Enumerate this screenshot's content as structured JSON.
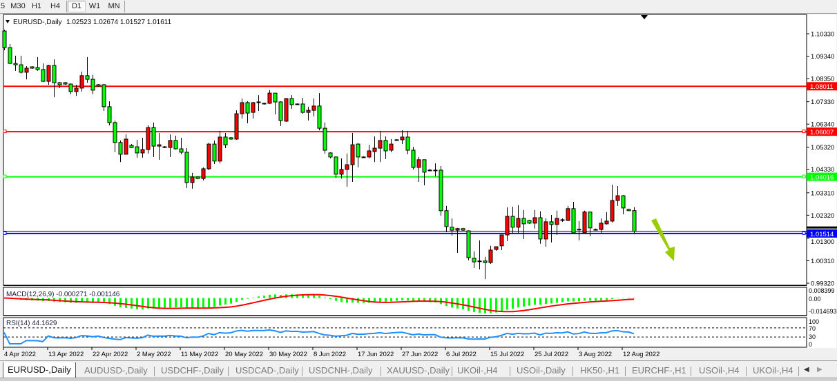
{
  "toolbar": {
    "timeframes": [
      {
        "label": "5",
        "active": false
      },
      {
        "label": "M30",
        "active": false
      },
      {
        "label": "H1",
        "active": false
      },
      {
        "label": "H4",
        "active": false
      },
      {
        "label": "D1",
        "active": true
      },
      {
        "label": "W1",
        "active": false
      },
      {
        "label": "MN",
        "active": false
      }
    ]
  },
  "chart": {
    "header_symbol": "EURUSD-,Daily",
    "header_ohlc": "1.02523 1.02674 1.01527 1.01611",
    "colors": {
      "up_candle": "#ff0000",
      "down_candle": "#00ff00",
      "wick": "#000000",
      "macd_hist": "#00ff00",
      "macd_signal": "#ff0000",
      "rsi": "#1e90ff",
      "arrow": "#9acd00"
    },
    "price_ticks": [
      "1.10330",
      "1.09340",
      "1.08350",
      "1.07330",
      "1.06340",
      "1.05320",
      "1.04330",
      "1.03310",
      "1.02320",
      "1.01300",
      "1.00310",
      "0.99320"
    ],
    "levels": [
      {
        "price": "1.08011",
        "color": "#ff0000",
        "text_color": "#ffffff"
      },
      {
        "price": "1.06007",
        "color": "#ff0000",
        "text_color": "#ffffff"
      },
      {
        "price": "1.04016",
        "color": "#00ff00",
        "text_color": "#ffffff"
      },
      {
        "price": "1.01514",
        "color": "#0000ff",
        "text_color": "#ffffff"
      }
    ],
    "bid": "1.01611",
    "date_labels": [
      "4 Apr 2022",
      "13 Apr 2022",
      "22 Apr 2022",
      "2 May 2022",
      "11 May 2022",
      "20 May 2022",
      "30 May 2022",
      "8 Jun 2022",
      "17 Jun 2022",
      "27 Jun 2022",
      "6 Jul 2022",
      "15 Jul 2022",
      "25 Jul 2022",
      "3 Aug 2022",
      "12 Aug 2022"
    ],
    "annotation": {
      "type": "arrow",
      "direction": "down-right",
      "icon": "arrow-down-right-icon"
    }
  },
  "macd": {
    "label": "MACD(12,26,9) -0.000271 -0.001146",
    "params": [
      12,
      26,
      9
    ],
    "main": -0.000271,
    "signal": -0.001146,
    "scale_max": "0.008399",
    "scale_zero": "0.00",
    "scale_min": "-0.014693"
  },
  "rsi": {
    "label": "RSI(14) 44.1629",
    "period": 14,
    "value": 44.1629,
    "levels": [
      "100",
      "70",
      "30",
      "0"
    ]
  },
  "chart_data": {
    "type": "candlestick",
    "symbol": "EURUSD-",
    "timeframe": "Daily",
    "ylim": [
      0.9932,
      1.1033
    ],
    "candles_ohlc": [
      [
        1.1045,
        1.1051,
        1.096,
        1.0972
      ],
      [
        1.0972,
        1.0987,
        1.0899,
        1.0902
      ],
      [
        1.0902,
        1.0936,
        1.0869,
        1.0896
      ],
      [
        1.0896,
        1.0936,
        1.0857,
        1.0863
      ],
      [
        1.0863,
        1.089,
        1.0832,
        1.0881
      ],
      [
        1.0887,
        1.089,
        1.0878,
        1.0881
      ],
      [
        1.0884,
        1.093,
        1.0869,
        1.0875
      ],
      [
        1.0875,
        1.0902,
        1.082,
        1.0823
      ],
      [
        1.0823,
        1.0896,
        1.0808,
        1.0893
      ],
      [
        1.0893,
        1.092,
        1.0753,
        1.0817
      ],
      [
        1.0817,
        1.082,
        1.0793,
        1.0808
      ],
      [
        1.0817,
        1.082,
        1.0808,
        1.0811
      ],
      [
        1.0811,
        1.0814,
        1.0766,
        1.0778
      ],
      [
        1.0778,
        1.0808,
        1.0759,
        1.0793
      ],
      [
        1.0793,
        1.0866,
        1.0778,
        1.0848
      ],
      [
        1.0848,
        1.093,
        1.0817,
        1.0832
      ],
      [
        1.0832,
        1.0851,
        1.0766,
        1.0784
      ],
      [
        1.0808,
        1.0811,
        1.0799,
        1.0802
      ],
      [
        1.0808,
        1.0811,
        1.0692,
        1.0711
      ],
      [
        1.0711,
        1.0735,
        1.0629,
        1.0641
      ],
      [
        1.0641,
        1.065,
        1.051,
        1.0553
      ],
      [
        1.0553,
        1.0562,
        1.0467,
        1.0501
      ],
      [
        1.0501,
        1.0589,
        1.0501,
        1.0568
      ],
      [
        1.054,
        1.0546,
        1.0528,
        1.0531
      ],
      [
        1.0534,
        1.0565,
        1.0486,
        1.0507
      ],
      [
        1.0507,
        1.0574,
        1.0486,
        1.0522
      ],
      [
        1.0522,
        1.0629,
        1.0504,
        1.0619
      ],
      [
        1.0619,
        1.0641,
        1.0489,
        1.0537
      ],
      [
        1.0537,
        1.0595,
        1.0477,
        1.0543
      ],
      [
        1.0534,
        1.0537,
        1.0528,
        1.0534
      ],
      [
        1.0531,
        1.0589,
        1.0489,
        1.0562
      ],
      [
        1.0562,
        1.0583,
        1.0522,
        1.0525
      ],
      [
        1.0525,
        1.0574,
        1.0501,
        1.051
      ],
      [
        1.051,
        1.0528,
        1.0352,
        1.0376
      ],
      [
        1.0376,
        1.0419,
        1.0349,
        1.0401
      ],
      [
        1.0401,
        1.0404,
        1.0391,
        1.0394
      ],
      [
        1.0394,
        1.0443,
        1.0385,
        1.0437
      ],
      [
        1.0437,
        1.0552,
        1.0431,
        1.0546
      ],
      [
        1.0546,
        1.0562,
        1.0458,
        1.0471
      ],
      [
        1.0471,
        1.0604,
        1.0461,
        1.0577
      ],
      [
        1.0577,
        1.0595,
        1.0528,
        1.0543
      ],
      [
        1.0574,
        1.0577,
        1.0565,
        1.0568
      ],
      [
        1.0568,
        1.0695,
        1.0565,
        1.068
      ],
      [
        1.068,
        1.0747,
        1.0659,
        1.0729
      ],
      [
        1.0729,
        1.0735,
        1.0638,
        1.0683
      ],
      [
        1.0686,
        1.0732,
        1.0659,
        1.0729
      ],
      [
        1.0732,
        1.0762,
        1.0692,
        1.0732
      ],
      [
        1.0726,
        1.0729,
        1.072,
        1.0726
      ],
      [
        1.0726,
        1.0784,
        1.0723,
        1.0771
      ],
      [
        1.0771,
        1.0771,
        1.0677,
        1.0732
      ],
      [
        1.0732,
        1.0735,
        1.0626,
        1.065
      ],
      [
        1.0647,
        1.0747,
        1.0644,
        1.0747
      ],
      [
        1.0747,
        1.0762,
        1.0702,
        1.072
      ],
      [
        1.0723,
        1.0726,
        1.072,
        1.0723
      ],
      [
        1.0723,
        1.075,
        1.068,
        1.0686
      ],
      [
        1.0686,
        1.0711,
        1.065,
        1.0695
      ],
      [
        1.0695,
        1.0747,
        1.0668,
        1.0714
      ],
      [
        1.0714,
        1.0771,
        1.0607,
        1.0616
      ],
      [
        1.0616,
        1.0641,
        1.0504,
        1.0519
      ],
      [
        1.0507,
        1.051,
        1.0483,
        1.0489
      ],
      [
        1.0489,
        1.0492,
        1.0397,
        1.0413
      ],
      [
        1.0413,
        1.0483,
        1.0394,
        1.0434
      ],
      [
        1.0434,
        1.0504,
        1.0358,
        1.0455
      ],
      [
        1.0455,
        1.0595,
        1.0379,
        1.0543
      ],
      [
        1.0546,
        1.055,
        1.0443,
        1.0489
      ],
      [
        1.0489,
        1.0492,
        1.0486,
        1.0489
      ],
      [
        1.0489,
        1.0543,
        1.0483,
        1.0516
      ],
      [
        1.0513,
        1.058,
        1.0467,
        1.0528
      ],
      [
        1.0528,
        1.0604,
        1.0467,
        1.0562
      ],
      [
        1.0562,
        1.058,
        1.048,
        1.0516
      ],
      [
        1.0519,
        1.0568,
        1.051,
        1.0546
      ],
      [
        1.0565,
        1.0568,
        1.0562,
        1.0565
      ],
      [
        1.0565,
        1.0607,
        1.0546,
        1.0577
      ],
      [
        1.0577,
        1.0604,
        1.0501,
        1.0519
      ],
      [
        1.0519,
        1.0534,
        1.0434,
        1.0443
      ],
      [
        1.0443,
        1.0489,
        1.0379,
        1.0477
      ],
      [
        1.0477,
        1.0477,
        1.0364,
        1.0422
      ],
      [
        1.0431,
        1.0437,
        1.0428,
        1.0431
      ],
      [
        1.0431,
        1.0461,
        1.0404,
        1.0431
      ],
      [
        1.0431,
        1.0449,
        1.023,
        1.0252
      ],
      [
        1.0252,
        1.0273,
        1.0157,
        1.0182
      ],
      [
        1.0179,
        1.0218,
        1.0142,
        1.0166
      ],
      [
        1.0166,
        1.0176,
        1.0066,
        1.0173
      ],
      [
        1.0173,
        1.0176,
        1.0163,
        1.0166
      ],
      [
        1.0163,
        1.0166,
        1.0033,
        1.0045
      ],
      [
        1.0042,
        1.0072,
        0.9999,
        1.0026
      ],
      [
        1.003,
        1.0121,
        0.9993,
        1.003
      ],
      [
        1.003,
        1.0048,
        0.995,
        1.0023
      ],
      [
        1.0023,
        1.0097,
        1.0017,
        1.0078
      ],
      [
        1.0081,
        1.0093,
        1.0075,
        1.0093
      ],
      [
        1.0097,
        1.0145,
        1.0078,
        1.0145
      ],
      [
        1.0145,
        1.0267,
        1.0118,
        1.0227
      ],
      [
        1.0227,
        1.027,
        1.0154,
        1.0179
      ],
      [
        1.0179,
        1.0276,
        1.0154,
        1.0218
      ],
      [
        1.0218,
        1.0255,
        1.0127,
        1.0194
      ],
      [
        1.0209,
        1.0212,
        1.0194,
        1.0197
      ],
      [
        1.0197,
        1.0255,
        1.0173,
        1.0221
      ],
      [
        1.0221,
        1.0249,
        1.0106,
        1.0127
      ],
      [
        1.0127,
        1.0218,
        1.0093,
        1.0203
      ],
      [
        1.0203,
        1.0233,
        1.0112,
        1.0191
      ],
      [
        1.0191,
        1.0252,
        1.0145,
        1.0218
      ],
      [
        1.0212,
        1.0218,
        1.0203,
        1.0212
      ],
      [
        1.0209,
        1.0273,
        1.0206,
        1.0261
      ],
      [
        1.0261,
        1.0291,
        1.0154,
        1.0154
      ],
      [
        1.017,
        1.0206,
        1.0121,
        1.017
      ],
      [
        1.0154,
        1.0252,
        1.0154,
        1.0246
      ],
      [
        1.0246,
        1.0246,
        1.0139,
        1.0176
      ],
      [
        1.0169,
        1.0173,
        1.0166,
        1.0169
      ],
      [
        1.0169,
        1.0218,
        1.0154,
        1.0197
      ],
      [
        1.0194,
        1.0246,
        1.0191,
        1.0206
      ],
      [
        1.0206,
        1.0367,
        1.02,
        1.0297
      ],
      [
        1.0297,
        1.0361,
        1.0273,
        1.0318
      ],
      [
        1.0318,
        1.0321,
        1.0236,
        1.0264
      ],
      [
        1.0258,
        1.0261,
        1.0252,
        1.0252
      ],
      [
        1.02523,
        1.02674,
        1.01527,
        1.01611
      ]
    ]
  },
  "tabs": [
    {
      "label": "EURUSD-,Daily",
      "active": true
    },
    {
      "label": "AUDUSD-,Daily"
    },
    {
      "label": "USDCHF-,Daily"
    },
    {
      "label": "USDCAD-,Daily"
    },
    {
      "label": "USDCNH-,Daily"
    },
    {
      "label": "XAUUSD-,Daily"
    },
    {
      "label": "UKOil-,H4"
    },
    {
      "label": "USOil-,Daily"
    },
    {
      "label": "HK50-,H1"
    },
    {
      "label": "EURCHF-,H1"
    },
    {
      "label": "USOil-,H4"
    },
    {
      "label": "UKOil-,H4"
    }
  ],
  "tab_scroll": {
    "left": "◀",
    "right": "▶"
  }
}
